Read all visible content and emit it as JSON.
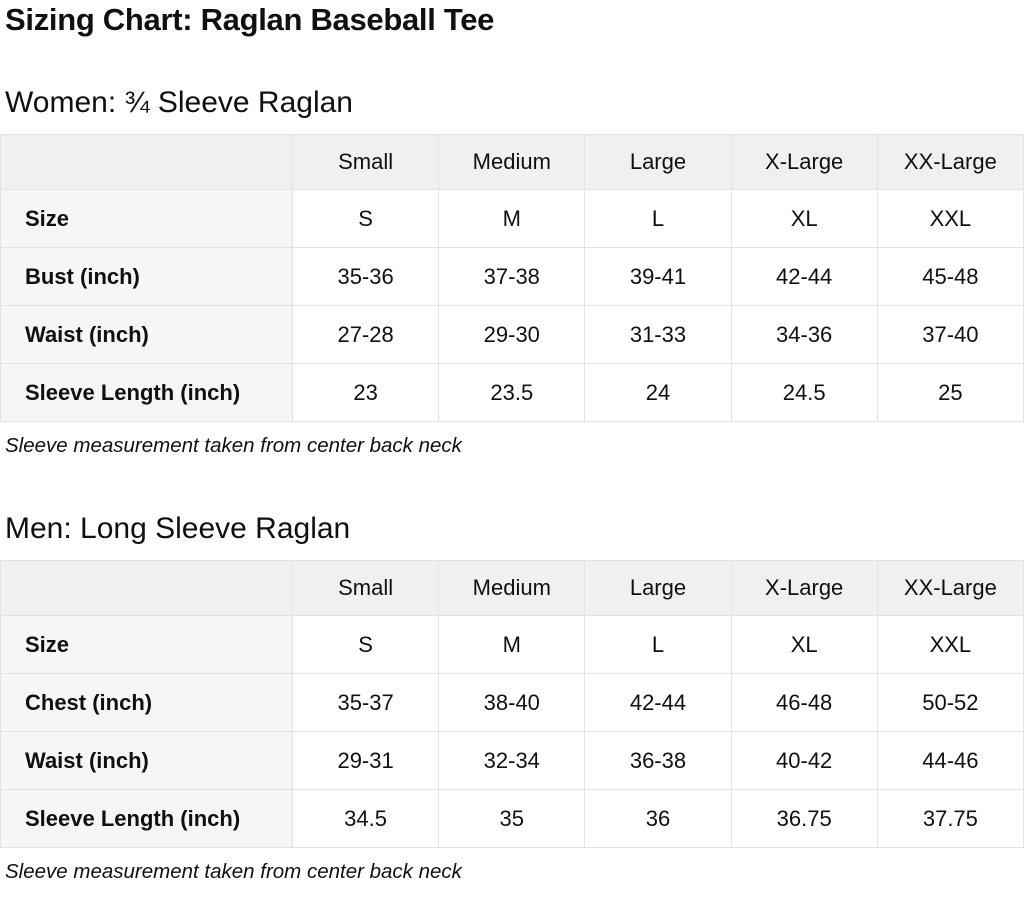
{
  "page": {
    "title": "Sizing Chart: Raglan Baseball Tee"
  },
  "colors": {
    "header_row_bg": "#f0f0f0",
    "label_column_bg": "#f6f6f6",
    "cell_bg": "#ffffff",
    "border": "#e3e3e3",
    "text": "#0f1111"
  },
  "sections": [
    {
      "heading": "Women: ¾ Sleeve Raglan",
      "note": "Sleeve measurement taken from center back neck",
      "table": {
        "column_headers": [
          "",
          "Small",
          "Medium",
          "Large",
          "X-Large",
          "XX-Large"
        ],
        "rows": [
          {
            "label": "Size",
            "values": [
              "S",
              "M",
              "L",
              "XL",
              "XXL"
            ]
          },
          {
            "label": "Bust (inch)",
            "values": [
              "35-36",
              "37-38",
              "39-41",
              "42-44",
              "45-48"
            ]
          },
          {
            "label": "Waist (inch)",
            "values": [
              "27-28",
              "29-30",
              "31-33",
              "34-36",
              "37-40"
            ]
          },
          {
            "label": "Sleeve Length (inch)",
            "values": [
              "23",
              "23.5",
              "24",
              "24.5",
              "25"
            ]
          }
        ]
      }
    },
    {
      "heading": "Men: Long Sleeve Raglan",
      "note": "Sleeve measurement taken from center back neck",
      "table": {
        "column_headers": [
          "",
          "Small",
          "Medium",
          "Large",
          "X-Large",
          "XX-Large"
        ],
        "rows": [
          {
            "label": "Size",
            "values": [
              "S",
              "M",
              "L",
              "XL",
              "XXL"
            ]
          },
          {
            "label": "Chest (inch)",
            "values": [
              "35-37",
              "38-40",
              "42-44",
              "46-48",
              "50-52"
            ]
          },
          {
            "label": "Waist (inch)",
            "values": [
              "29-31",
              "32-34",
              "36-38",
              "40-42",
              "44-46"
            ]
          },
          {
            "label": "Sleeve Length (inch)",
            "values": [
              "34.5",
              "35",
              "36",
              "36.75",
              "37.75"
            ]
          }
        ]
      }
    }
  ]
}
